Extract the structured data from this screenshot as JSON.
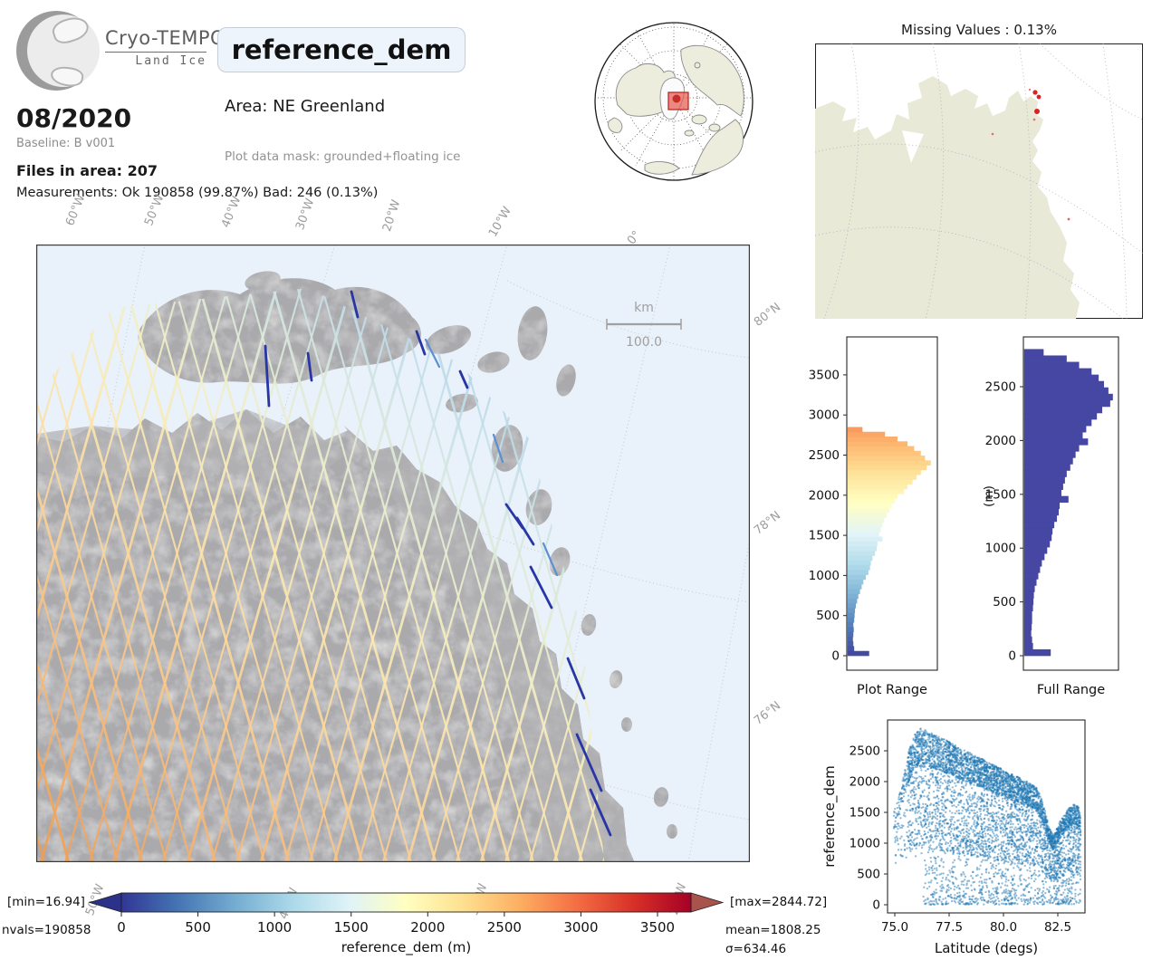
{
  "header": {
    "logo_title": "Cryo-TEMPO",
    "logo_subtitle": "Land Ice",
    "date": "08/2020",
    "baseline": "Baseline: B v001",
    "files": "Files in area: 207",
    "measurements": "Measurements: Ok 190858 (99.87%) Bad: 246 (0.13%)",
    "variable": "reference_dem",
    "area": "Area: NE Greenland",
    "mask": "Plot data mask: grounded+floating ice"
  },
  "missing_map": {
    "title": "Missing Values : 0.13%",
    "land_color": "#e9e9d8",
    "marker_color": "#e02020"
  },
  "main_map": {
    "scalebar_unit": "km",
    "scalebar_value": "100.0",
    "lon_top": [
      "60°W",
      "50°W",
      "40°W",
      "30°W",
      "20°W",
      "10°W",
      "0°"
    ],
    "lon_bottom": [
      "50°W",
      "40°W",
      "30°W",
      "20°W"
    ],
    "lat_right": [
      "80°N",
      "78°N",
      "76°N"
    ],
    "ocean_color": "#e9f1fa",
    "track_low_color": "#f19e51",
    "track_high_color": "#93bbda",
    "bad_track_color": "#2836a5"
  },
  "colorbar": {
    "label": "reference_dem (m)",
    "ticks": [
      0,
      500,
      1000,
      1500,
      2000,
      2500,
      3000,
      3500
    ],
    "vmin": 0,
    "vmax": 3800,
    "min_label": "[min=16.94]",
    "max_label": "[max=2844.72]",
    "nvals_label": "nvals=190858",
    "mean_label": "mean=1808.25",
    "sigma_label": "σ=634.46",
    "left_arrow_color": "#2c3189",
    "right_arrow_color": "#a8544c",
    "cmap_stops": [
      "#313695",
      "#4575b4",
      "#74add1",
      "#abd9e9",
      "#e0f3f8",
      "#ffffbf",
      "#fee090",
      "#fdae61",
      "#f46d43",
      "#d73027",
      "#a50026"
    ]
  },
  "chart_data": [
    {
      "type": "bar",
      "id": "hist_plot_range",
      "title": "Plot Range",
      "orientation": "horizontal",
      "bin_max": 2850,
      "yticks": [
        0,
        500,
        1000,
        1500,
        2000,
        2500,
        3000,
        3500
      ],
      "ylim": [
        -170,
        3990
      ],
      "colormap": "RdYlBu_r",
      "widths": [
        0.26,
        0.08,
        0.07,
        0.065,
        0.07,
        0.075,
        0.07,
        0.08,
        0.085,
        0.09,
        0.1,
        0.115,
        0.13,
        0.15,
        0.17,
        0.19,
        0.22,
        0.25,
        0.27,
        0.28,
        0.3,
        0.33,
        0.35,
        0.36,
        0.42,
        0.38,
        0.4,
        0.42,
        0.44,
        0.47,
        0.5,
        0.53,
        0.57,
        0.6,
        0.68,
        0.72,
        0.78,
        0.83,
        0.88,
        0.95,
        1.0,
        0.93,
        0.88,
        0.8,
        0.72,
        0.6,
        0.45,
        0.18
      ]
    },
    {
      "type": "bar",
      "id": "hist_full_range",
      "title": "Full Range",
      "ylabel": "(m)",
      "orientation": "horizontal",
      "bin_max": 2850,
      "yticks": [
        0,
        500,
        1000,
        1500,
        2000,
        2500
      ],
      "ylim": [
        -135,
        2963
      ],
      "color": "#4547a3",
      "widths": [
        0.3,
        0.1,
        0.09,
        0.08,
        0.085,
        0.09,
        0.09,
        0.1,
        0.105,
        0.11,
        0.12,
        0.14,
        0.16,
        0.18,
        0.2,
        0.23,
        0.26,
        0.29,
        0.31,
        0.32,
        0.34,
        0.37,
        0.39,
        0.4,
        0.5,
        0.42,
        0.44,
        0.46,
        0.48,
        0.52,
        0.55,
        0.58,
        0.62,
        0.72,
        0.66,
        0.7,
        0.76,
        0.82,
        0.88,
        0.97,
        1.0,
        0.95,
        0.9,
        0.84,
        0.76,
        0.62,
        0.48,
        0.22
      ]
    },
    {
      "type": "scatter",
      "id": "dem_vs_lat",
      "xlabel": "Latitude (degs)",
      "ylabel": "reference_dem",
      "xticks": [
        "75.0",
        "77.5",
        "80.0",
        "82.5"
      ],
      "yticks": [
        0,
        500,
        1000,
        1500,
        2000,
        2500
      ],
      "xlim": [
        74.67,
        83.75
      ],
      "ylim": [
        -103,
        3000
      ],
      "color": "#1f77b4",
      "upper_envelope": [
        [
          75.0,
          1550
        ],
        [
          75.3,
          1900
        ],
        [
          75.6,
          2450
        ],
        [
          75.9,
          2750
        ],
        [
          76.2,
          2870
        ],
        [
          76.6,
          2800
        ],
        [
          77.2,
          2700
        ],
        [
          78.0,
          2550
        ],
        [
          79.0,
          2370
        ],
        [
          80.0,
          2190
        ],
        [
          80.8,
          2050
        ],
        [
          81.3,
          1960
        ],
        [
          81.6,
          1880
        ],
        [
          81.9,
          1550
        ],
        [
          82.1,
          1250
        ],
        [
          82.3,
          1120
        ],
        [
          82.6,
          1350
        ],
        [
          82.9,
          1520
        ],
        [
          83.2,
          1630
        ],
        [
          83.45,
          1600
        ],
        [
          83.55,
          1400
        ]
      ]
    }
  ]
}
